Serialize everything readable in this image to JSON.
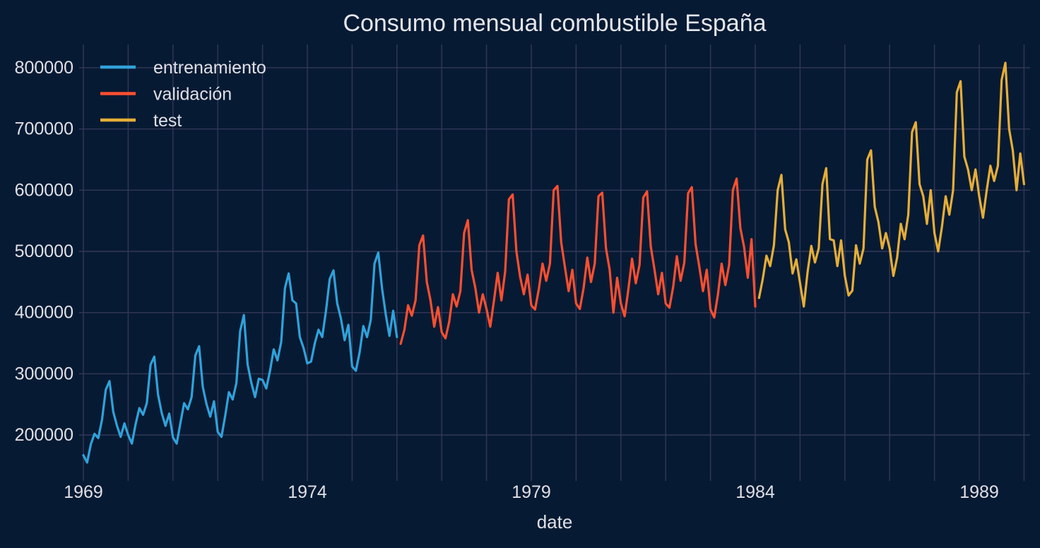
{
  "title": "Consumo mensual combustible España",
  "axes": {
    "xlabel": "date",
    "x_tick_labels": [
      "1969",
      "1974",
      "1979",
      "1984",
      "1989"
    ],
    "x_tick_years": [
      1969,
      1974,
      1979,
      1984,
      1989
    ],
    "y_tick_labels": [
      "200000",
      "300000",
      "400000",
      "500000",
      "600000",
      "700000",
      "800000"
    ],
    "y_tick_values": [
      200000,
      300000,
      400000,
      500000,
      600000,
      700000,
      800000
    ],
    "grid": true,
    "legend_position": "upper-left"
  },
  "colors": {
    "background": "#071a33",
    "grid": "#333759",
    "text": "#dfe0e6",
    "train": "#30a2da",
    "validation": "#fc4f30",
    "test": "#e5ae38"
  },
  "chart_data": {
    "type": "line",
    "title": "Consumo mensual combustible España",
    "xlabel": "date",
    "ylabel": "",
    "frequency": "monthly",
    "x_start": "1969-01",
    "x_end": "1990-01",
    "grid": true,
    "legend_position": "upper-left",
    "xlim_years": [
      1968.9,
      1990.15
    ],
    "ylim": [
      130000,
      840000
    ],
    "year_gridlines": [
      1969,
      1990
    ],
    "series": [
      {
        "name": "entrenamiento",
        "color": "#30a2da",
        "start": "1969-01",
        "values": [
          167000,
          155000,
          185000,
          202000,
          195000,
          225000,
          274000,
          288000,
          238000,
          215000,
          197000,
          219000,
          200000,
          186000,
          218000,
          244000,
          233000,
          252000,
          315000,
          328000,
          266000,
          236000,
          215000,
          235000,
          196000,
          186000,
          220000,
          252000,
          242000,
          262000,
          330000,
          345000,
          278000,
          250000,
          230000,
          255000,
          205000,
          197000,
          232000,
          270000,
          258000,
          285000,
          370000,
          396000,
          315000,
          285000,
          262000,
          292000,
          290000,
          276000,
          305000,
          340000,
          322000,
          352000,
          440000,
          464000,
          420000,
          415000,
          360000,
          342000,
          317000,
          320000,
          350000,
          372000,
          360000,
          403000,
          455000,
          469000,
          415000,
          390000,
          355000,
          380000,
          312000,
          305000,
          335000,
          378000,
          360000,
          388000,
          480000,
          498000,
          440000,
          397000,
          362000,
          403000,
          360000
        ]
      },
      {
        "name": "validación",
        "color": "#fc4f30",
        "start": "1976-02",
        "values": [
          349000,
          372000,
          412000,
          395000,
          420000,
          510000,
          526000,
          450000,
          420000,
          377000,
          409000,
          368000,
          358000,
          385000,
          430000,
          410000,
          435000,
          530000,
          551000,
          470000,
          440000,
          400000,
          430000,
          406000,
          377000,
          420000,
          465000,
          420000,
          467000,
          585000,
          593000,
          500000,
          459000,
          430000,
          462000,
          412000,
          405000,
          438000,
          480000,
          452000,
          480000,
          600000,
          607000,
          515000,
          475000,
          435000,
          470000,
          415000,
          406000,
          440000,
          490000,
          450000,
          480000,
          590000,
          596000,
          505000,
          470000,
          400000,
          457000,
          415000,
          394000,
          438000,
          488000,
          448000,
          478000,
          588000,
          598000,
          508000,
          470000,
          430000,
          465000,
          415000,
          408000,
          442000,
          492000,
          452000,
          482000,
          595000,
          605000,
          512000,
          475000,
          435000,
          470000,
          405000,
          392000,
          430000,
          480000,
          445000,
          478000,
          600000,
          619000,
          538000,
          507000,
          457000,
          520000,
          410000
        ]
      },
      {
        "name": "test",
        "color": "#e5ae38",
        "start": "1984-02",
        "values": [
          424000,
          455000,
          493000,
          476000,
          510000,
          600000,
          625000,
          536000,
          515000,
          464000,
          487000,
          448000,
          410000,
          466000,
          509000,
          482000,
          505000,
          610000,
          636000,
          520000,
          518000,
          476000,
          518000,
          460000,
          428000,
          436000,
          510000,
          480000,
          505000,
          650000,
          665000,
          573000,
          548000,
          505000,
          530000,
          505000,
          460000,
          490000,
          545000,
          520000,
          560000,
          695000,
          711000,
          610000,
          590000,
          545000,
          600000,
          530000,
          500000,
          540000,
          590000,
          560000,
          600000,
          760000,
          778000,
          655000,
          634000,
          600000,
          634000,
          590000,
          555000,
          600000,
          640000,
          615000,
          640000,
          780000,
          808000,
          700000,
          665000,
          600000,
          660000,
          610000
        ]
      }
    ]
  }
}
